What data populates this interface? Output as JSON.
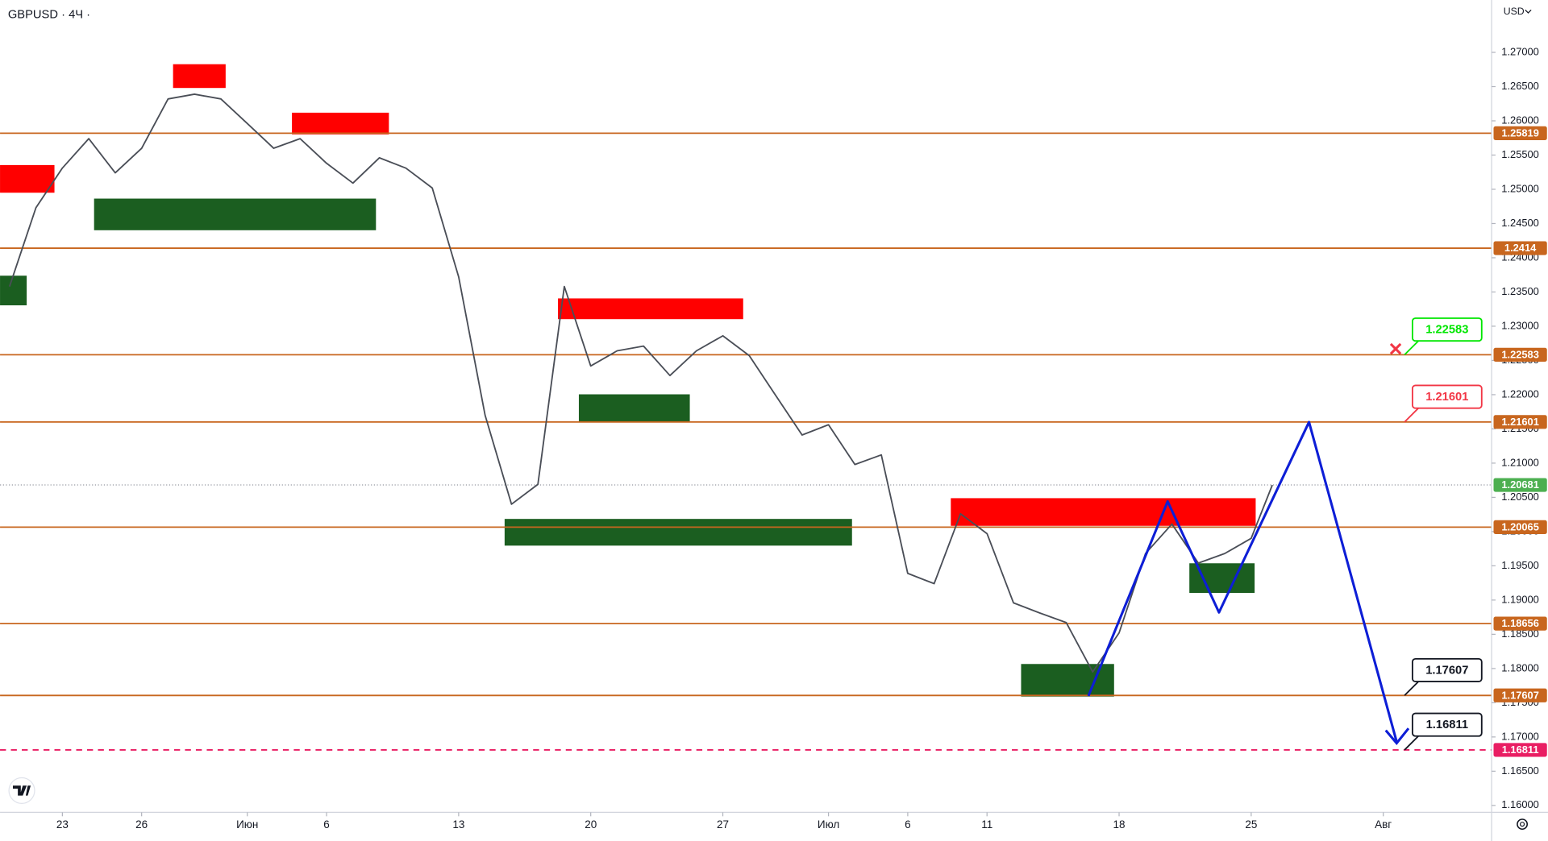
{
  "chart_data": {
    "type": "line",
    "title": "GBPUSD · 4Ч ·",
    "currency": "USD",
    "series": [
      {
        "color": "#4a4e57",
        "x": [
          -2,
          -1,
          0,
          1,
          2,
          3,
          4,
          5,
          6,
          7,
          8,
          9,
          10,
          11,
          12,
          13,
          14,
          15,
          16,
          17,
          18,
          19,
          20,
          21,
          22,
          23,
          24,
          25,
          26,
          27,
          28,
          29,
          30,
          31,
          32,
          33,
          34,
          35,
          36,
          37,
          38,
          39,
          40,
          41,
          42,
          43,
          44,
          45,
          45.8
        ],
        "values": [
          1.2358,
          1.2473,
          1.2531,
          1.2574,
          1.2524,
          1.256,
          1.2632,
          1.2639,
          1.2632,
          1.2596,
          1.256,
          1.2574,
          1.2538,
          1.2509,
          1.2546,
          1.2531,
          1.2502,
          1.2372,
          1.217,
          1.204,
          1.2069,
          1.2358,
          1.2242,
          1.2264,
          1.2271,
          1.2228,
          1.2264,
          1.2286,
          1.2257,
          1.2199,
          1.2141,
          1.2156,
          1.2098,
          1.2112,
          1.1939,
          1.1924,
          1.2026,
          1.1997,
          1.1896,
          1.1881,
          1.1867,
          1.1795,
          1.1852,
          1.1968,
          1.2011,
          1.1954,
          1.1968,
          1.199,
          1.2068
        ]
      },
      {
        "color": "#0d1ed6",
        "x": [
          38.84,
          41.84,
          43.78,
          47.19,
          50.52
        ],
        "values": [
          1.176,
          1.2044,
          1.1882,
          1.216,
          1.1691
        ]
      }
    ],
    "xlim": [
      -2.36,
      54.1
    ],
    "xticks": [
      {
        "value": 0,
        "label": "23"
      },
      {
        "value": 3,
        "label": "26"
      },
      {
        "value": 7,
        "label": "Июн"
      },
      {
        "value": 10,
        "label": "6"
      },
      {
        "value": 15,
        "label": "13"
      },
      {
        "value": 20,
        "label": "20"
      },
      {
        "value": 25,
        "label": "27"
      },
      {
        "value": 29,
        "label": "Июл"
      },
      {
        "value": 32,
        "label": "6"
      },
      {
        "value": 35,
        "label": "11"
      },
      {
        "value": 40,
        "label": "18"
      },
      {
        "value": 45,
        "label": "25"
      },
      {
        "value": 50,
        "label": "Авг"
      }
    ],
    "ylim": [
      1.15899,
      1.27765
    ],
    "yticks": [
      {
        "value": 1.16,
        "label": "1.16000"
      },
      {
        "value": 1.165,
        "label": "1.16500"
      },
      {
        "value": 1.17,
        "label": "1.17000"
      },
      {
        "value": 1.175,
        "label": "1.17500"
      },
      {
        "value": 1.18,
        "label": "1.18000"
      },
      {
        "value": 1.185,
        "label": "1.18500"
      },
      {
        "value": 1.19,
        "label": "1.19000"
      },
      {
        "value": 1.195,
        "label": "1.19500"
      },
      {
        "value": 1.2,
        "label": "1.20000"
      },
      {
        "value": 1.205,
        "label": "1.20500"
      },
      {
        "value": 1.21,
        "label": "1.21000"
      },
      {
        "value": 1.215,
        "label": "1.21500"
      },
      {
        "value": 1.22,
        "label": "1.22000"
      },
      {
        "value": 1.225,
        "label": "1.22500"
      },
      {
        "value": 1.23,
        "label": "1.23000"
      },
      {
        "value": 1.235,
        "label": "1.23500"
      },
      {
        "value": 1.24,
        "label": "1.24000"
      },
      {
        "value": 1.245,
        "label": "1.24500"
      },
      {
        "value": 1.25,
        "label": "1.25000"
      },
      {
        "value": 1.255,
        "label": "1.25500"
      },
      {
        "value": 1.26,
        "label": "1.26000"
      },
      {
        "value": 1.265,
        "label": "1.26500"
      },
      {
        "value": 1.27,
        "label": "1.27000"
      }
    ],
    "levels": [
      1.25819,
      1.2414,
      1.22583,
      1.21601,
      1.20065,
      1.18656,
      1.17607
    ],
    "level_color": "#c8661e",
    "target_level": {
      "value": 1.16811,
      "color": "#e91e63"
    },
    "last_price": {
      "value": 1.20681,
      "color": "#4caf50"
    },
    "callouts": [
      {
        "value": 1.22583,
        "color": "#00e600"
      },
      {
        "value": 1.21601,
        "color": "#f23645"
      },
      {
        "value": 1.17607,
        "color": "#131722"
      },
      {
        "value": 1.16811,
        "color": "#131722"
      }
    ],
    "zones": [
      {
        "x0": -2.36,
        "x1": -0.3,
        "y0": 1.2495,
        "y1": 1.25354,
        "color": "#ff0000"
      },
      {
        "x0": 4.19,
        "x1": 6.18,
        "y0": 1.2648,
        "y1": 1.26827,
        "color": "#ff0000"
      },
      {
        "x0": 8.69,
        "x1": 12.36,
        "y0": 1.25802,
        "y1": 1.26119,
        "color": "#ff0000"
      },
      {
        "x0": 18.76,
        "x1": 25.77,
        "y0": 1.23103,
        "y1": 1.23406,
        "color": "#ff0000"
      },
      {
        "x0": 33.63,
        "x1": 45.17,
        "y0": 1.20084,
        "y1": 1.20488,
        "color": "#ff0000"
      },
      {
        "x0": -2.36,
        "x1": -1.35,
        "y0": 1.23305,
        "y1": 1.23738,
        "color": "#1b5e20"
      },
      {
        "x0": 1.2,
        "x1": 11.87,
        "y0": 1.24402,
        "y1": 1.24864,
        "color": "#1b5e20"
      },
      {
        "x0": 19.55,
        "x1": 23.75,
        "y0": 1.21601,
        "y1": 1.22005,
        "color": "#1b5e20"
      },
      {
        "x0": 16.74,
        "x1": 29.89,
        "y0": 1.19795,
        "y1": 1.20185,
        "color": "#1b5e20"
      },
      {
        "x0": 36.29,
        "x1": 39.81,
        "y0": 1.1759,
        "y1": 1.18066,
        "color": "#1b5e20"
      },
      {
        "x0": 42.66,
        "x1": 45.13,
        "y0": 1.19104,
        "y1": 1.19537,
        "color": "#1b5e20"
      }
    ]
  }
}
